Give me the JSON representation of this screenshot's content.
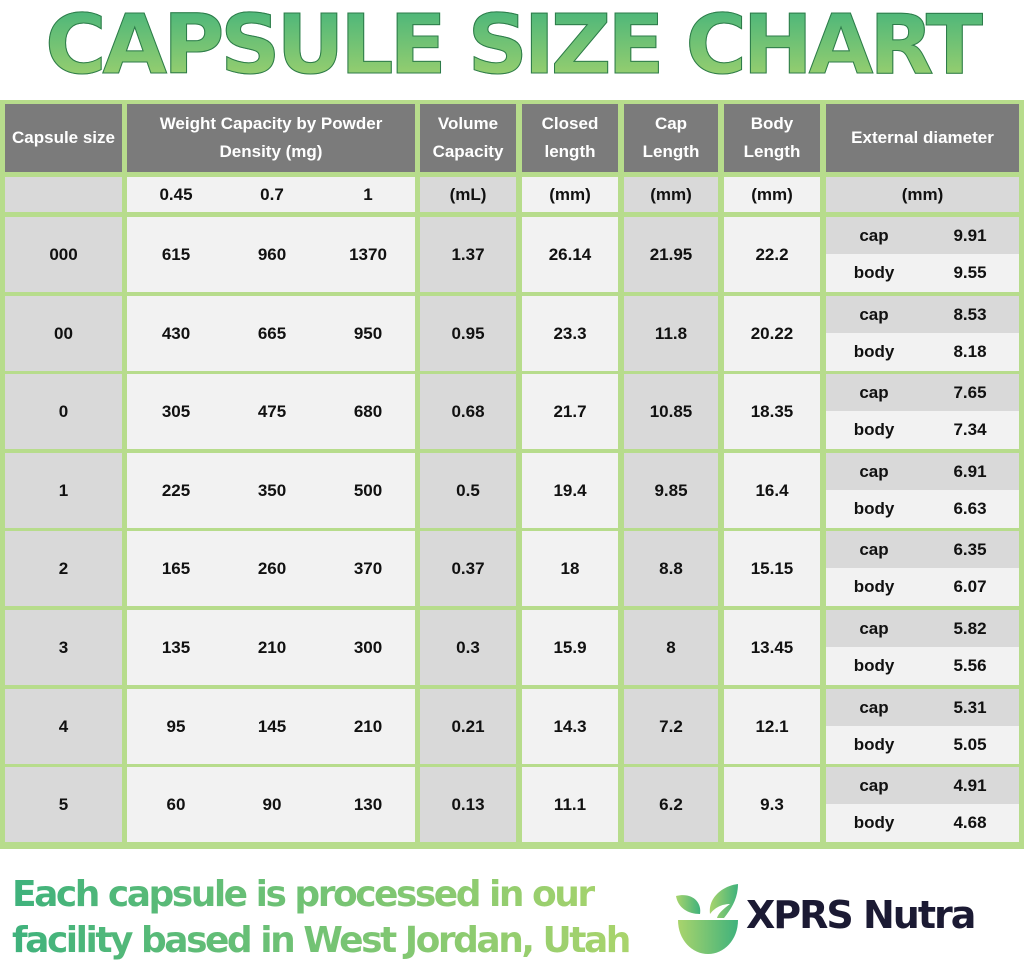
{
  "title": "CAPSULE SIZE CHART",
  "colors": {
    "accent_green": "#3fb27c",
    "light_green": "#a9d46c",
    "border_green": "#b7dc8c",
    "header_gray": "#7b7b7b",
    "brand_dark": "#1b1a33"
  },
  "chart_data": {
    "type": "table",
    "headers": [
      "Capsule size",
      "Weight Capacity by Powder Density (mg)",
      "Volume Capacity",
      "Closed length",
      "Cap Length",
      "Body Length",
      "External diameter"
    ],
    "units": [
      "",
      "0.45",
      "0.7",
      "1",
      "(mL)",
      "(mm)",
      "(mm)",
      "(mm)",
      "(mm)"
    ],
    "rows": [
      {
        "size": "000",
        "w045": "615",
        "w07": "960",
        "w1": "1370",
        "volume": "1.37",
        "closed": "26.14",
        "cap": "21.95",
        "body": "22.2",
        "d_cap": "9.91",
        "d_body": "9.55"
      },
      {
        "size": "00",
        "w045": "430",
        "w07": "665",
        "w1": "950",
        "volume": "0.95",
        "closed": "23.3",
        "cap": "11.8",
        "body": "20.22",
        "d_cap": "8.53",
        "d_body": "8.18"
      },
      {
        "size": "0",
        "w045": "305",
        "w07": "475",
        "w1": "680",
        "volume": "0.68",
        "closed": "21.7",
        "cap": "10.85",
        "body": "18.35",
        "d_cap": "7.65",
        "d_body": "7.34"
      },
      {
        "size": "1",
        "w045": "225",
        "w07": "350",
        "w1": "500",
        "volume": "0.5",
        "closed": "19.4",
        "cap": "9.85",
        "body": "16.4",
        "d_cap": "6.91",
        "d_body": "6.63"
      },
      {
        "size": "2",
        "w045": "165",
        "w07": "260",
        "w1": "370",
        "volume": "0.37",
        "closed": "18",
        "cap": "8.8",
        "body": "15.15",
        "d_cap": "6.35",
        "d_body": "6.07"
      },
      {
        "size": "3",
        "w045": "135",
        "w07": "210",
        "w1": "300",
        "volume": "0.3",
        "closed": "15.9",
        "cap": "8",
        "body": "13.45",
        "d_cap": "5.82",
        "d_body": "5.56"
      },
      {
        "size": "4",
        "w045": "95",
        "w07": "145",
        "w1": "210",
        "volume": "0.21",
        "closed": "14.3",
        "cap": "7.2",
        "body": "12.1",
        "d_cap": "5.31",
        "d_body": "5.05"
      },
      {
        "size": "5",
        "w045": "60",
        "w07": "90",
        "w1": "130",
        "volume": "0.13",
        "closed": "11.1",
        "cap": "6.2",
        "body": "9.3",
        "d_cap": "4.91",
        "d_body": "4.68"
      }
    ],
    "diameter_labels": {
      "cap": "cap",
      "body": "body"
    }
  },
  "footer": {
    "line1": "Each capsule is processed in our",
    "line2": "facility based in West Jordan, Utah"
  },
  "logo": {
    "text": "XPRS Nutra",
    "icon": "leaf-bowl-icon"
  }
}
